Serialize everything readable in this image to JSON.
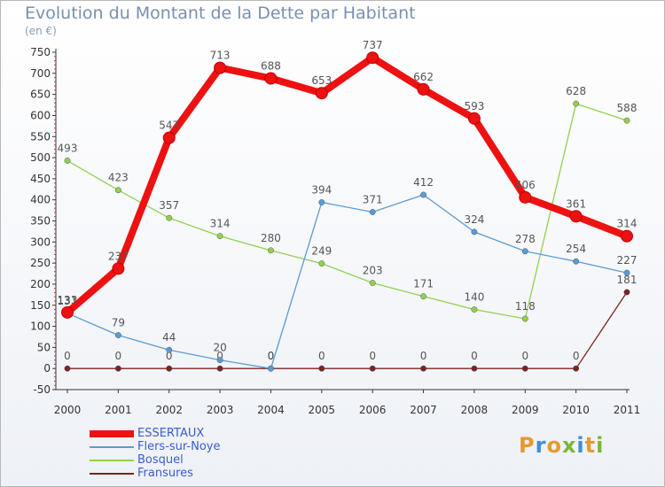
{
  "header": {
    "title": "Evolution du Montant de la Dette par Habitant",
    "subtitle": "(en €)"
  },
  "logo": {
    "letters": [
      "P",
      "r",
      "o",
      "x",
      "i",
      "t",
      "i"
    ],
    "colors": [
      "#e79a2c",
      "#3c8fd6",
      "#e79a2c",
      "#79b833",
      "#3c8fd6",
      "#e79a2c",
      "#79b833"
    ]
  },
  "chart_data": {
    "type": "line",
    "title": "Evolution du Montant de la Dette par Habitant",
    "subtitle": "(en €)",
    "xlabel": "",
    "ylabel": "",
    "x": [
      "2000",
      "2001",
      "2002",
      "2003",
      "2004",
      "2005",
      "2006",
      "2007",
      "2008",
      "2009",
      "2010",
      "2011"
    ],
    "ylim": [
      -50,
      750
    ],
    "yticks": [
      -50,
      0,
      50,
      100,
      150,
      200,
      250,
      300,
      350,
      400,
      450,
      500,
      550,
      600,
      650,
      700,
      750
    ],
    "grid": false,
    "legend": "bottom-left",
    "series": [
      {
        "name": "ESSERTAUX",
        "color": "#ee1111",
        "values": [
          133,
          237,
          547,
          713,
          688,
          653,
          737,
          662,
          593,
          406,
          361,
          314
        ]
      },
      {
        "name": "Flers-sur-Noye",
        "color": "#5b9bd5",
        "values": [
          131,
          79,
          44,
          20,
          0,
          394,
          371,
          412,
          324,
          278,
          254,
          227
        ]
      },
      {
        "name": "Bosquel",
        "color": "#92d050",
        "values": [
          493,
          423,
          357,
          314,
          280,
          249,
          203,
          171,
          140,
          118,
          628,
          588
        ]
      },
      {
        "name": "Fransures",
        "color": "#7b2323",
        "values": [
          0,
          0,
          0,
          0,
          0,
          0,
          0,
          0,
          0,
          0,
          0,
          181
        ]
      }
    ]
  }
}
